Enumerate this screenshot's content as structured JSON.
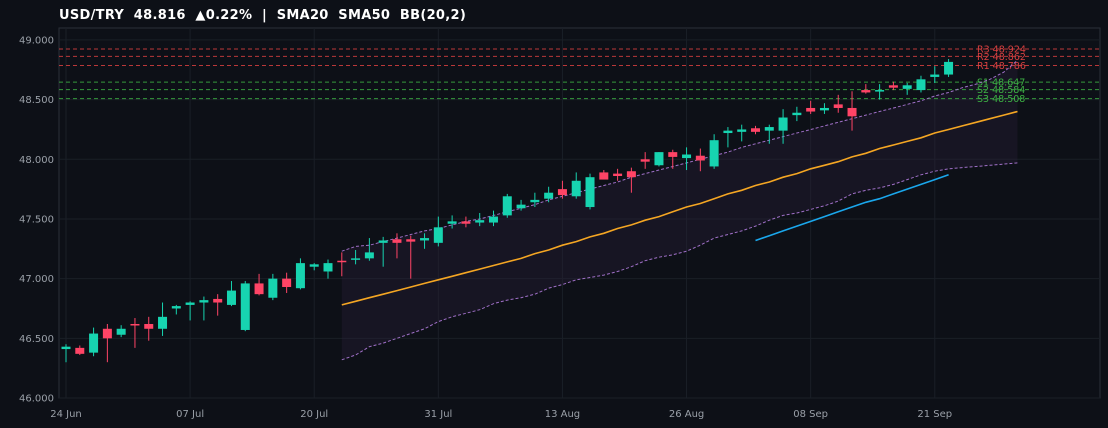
{
  "header": {
    "pair": "USD/TRY",
    "price": "48.816",
    "change": "▲0.22%",
    "separator": "|",
    "indicators": "SMA20  SMA50  BB(20,2)"
  },
  "chart_data": {
    "type": "candlestick",
    "title": "USD/TRY  48.816  ▲0.22%  |  SMA20  SMA50  BB(20,2)",
    "ylim": [
      46.0,
      49.1
    ],
    "yticks": [
      46.0,
      46.5,
      47.0,
      47.5,
      48.0,
      48.5,
      49.0
    ],
    "ytick_labels": [
      "46.000",
      "46.500",
      "47.000",
      "47.500",
      "48.000",
      "48.500",
      "49.000"
    ],
    "xtick_labels": [
      {
        "label": "24 Jun",
        "index": 0
      },
      {
        "label": "07 Jul",
        "index": 9
      },
      {
        "label": "20 Jul",
        "index": 18
      },
      {
        "label": "31 Jul",
        "index": 27
      },
      {
        "label": "13 Aug",
        "index": 36
      },
      {
        "label": "26 Aug",
        "index": 45
      },
      {
        "label": "08 Sep",
        "index": 54
      },
      {
        "label": "21 Sep",
        "index": 63
      }
    ],
    "n_slots": 75,
    "colors": {
      "up": "#17d4b0",
      "down": "#ff4466",
      "sma20": "#f5a623",
      "sma50": "#1aa7ec",
      "bb": "#a070c8",
      "resistance": "#d94040",
      "support": "#3cb043",
      "grid": "#1a1f27",
      "axis": "#2a2f38"
    },
    "ohlc": [
      [
        46.41,
        46.45,
        46.3,
        46.43
      ],
      [
        46.42,
        46.44,
        46.36,
        46.37
      ],
      [
        46.38,
        46.59,
        46.35,
        46.54
      ],
      [
        46.58,
        46.62,
        46.3,
        46.5
      ],
      [
        46.53,
        46.61,
        46.51,
        46.58
      ],
      [
        46.62,
        46.67,
        46.42,
        46.61
      ],
      [
        46.62,
        46.68,
        46.48,
        46.58
      ],
      [
        46.58,
        46.8,
        46.52,
        46.68
      ],
      [
        46.75,
        46.78,
        46.7,
        46.77
      ],
      [
        46.78,
        46.81,
        46.65,
        46.8
      ],
      [
        46.8,
        46.85,
        46.65,
        46.82
      ],
      [
        46.83,
        46.87,
        46.69,
        46.8
      ],
      [
        46.78,
        46.98,
        46.77,
        46.9
      ],
      [
        46.57,
        46.98,
        46.56,
        46.96
      ],
      [
        46.96,
        47.04,
        46.86,
        46.87
      ],
      [
        46.84,
        47.04,
        46.82,
        47.0
      ],
      [
        47.0,
        47.05,
        46.88,
        46.93
      ],
      [
        46.92,
        47.17,
        46.91,
        47.13
      ],
      [
        47.1,
        47.13,
        47.07,
        47.12
      ],
      [
        47.06,
        47.16,
        47.0,
        47.13
      ],
      [
        47.15,
        47.22,
        47.02,
        47.14
      ],
      [
        47.16,
        47.24,
        47.12,
        47.17
      ],
      [
        47.17,
        47.34,
        47.15,
        47.22
      ],
      [
        47.3,
        47.35,
        47.1,
        47.32
      ],
      [
        47.33,
        47.38,
        47.17,
        47.3
      ],
      [
        47.33,
        47.36,
        47.0,
        47.31
      ],
      [
        47.32,
        47.38,
        47.25,
        47.34
      ],
      [
        47.3,
        47.52,
        47.27,
        47.43
      ],
      [
        47.46,
        47.53,
        47.42,
        47.48
      ],
      [
        47.48,
        47.52,
        47.43,
        47.46
      ],
      [
        47.47,
        47.55,
        47.44,
        47.49
      ],
      [
        47.47,
        47.57,
        47.44,
        47.52
      ],
      [
        47.53,
        47.71,
        47.51,
        47.69
      ],
      [
        47.59,
        47.66,
        47.57,
        47.62
      ],
      [
        47.64,
        47.72,
        47.6,
        47.66
      ],
      [
        47.67,
        47.77,
        47.64,
        47.72
      ],
      [
        47.75,
        47.82,
        47.67,
        47.7
      ],
      [
        47.69,
        47.89,
        47.67,
        47.82
      ],
      [
        47.6,
        47.88,
        47.58,
        47.85
      ],
      [
        47.89,
        47.91,
        47.84,
        47.83
      ],
      [
        47.88,
        47.92,
        47.82,
        47.86
      ],
      [
        47.9,
        47.93,
        47.72,
        47.85
      ],
      [
        48.0,
        48.06,
        47.92,
        47.98
      ],
      [
        47.95,
        48.06,
        47.94,
        48.06
      ],
      [
        48.06,
        48.08,
        47.92,
        48.02
      ],
      [
        48.01,
        48.1,
        47.91,
        48.04
      ],
      [
        48.03,
        48.09,
        47.9,
        47.99
      ],
      [
        47.94,
        48.21,
        47.92,
        48.16
      ],
      [
        48.22,
        48.27,
        48.1,
        48.24
      ],
      [
        48.23,
        48.29,
        48.15,
        48.25
      ],
      [
        48.26,
        48.28,
        48.21,
        48.23
      ],
      [
        48.24,
        48.29,
        48.13,
        48.27
      ],
      [
        48.24,
        48.42,
        48.13,
        48.35
      ],
      [
        48.37,
        48.44,
        48.32,
        48.39
      ],
      [
        48.43,
        48.49,
        48.38,
        48.4
      ],
      [
        48.41,
        48.47,
        48.38,
        48.43
      ],
      [
        48.46,
        48.54,
        48.39,
        48.43
      ],
      [
        48.43,
        48.57,
        48.24,
        48.36
      ],
      [
        48.58,
        48.63,
        48.55,
        48.56
      ],
      [
        48.57,
        48.63,
        48.5,
        48.58
      ],
      [
        48.62,
        48.65,
        48.58,
        48.6
      ],
      [
        48.59,
        48.64,
        48.54,
        48.62
      ],
      [
        48.58,
        48.7,
        48.56,
        48.67
      ],
      [
        48.69,
        48.78,
        48.64,
        48.71
      ],
      [
        48.71,
        48.84,
        48.69,
        48.816
      ]
    ],
    "series": [
      {
        "name": "SMA20",
        "start_index": 20,
        "values": [
          46.78,
          46.81,
          46.84,
          46.87,
          46.9,
          46.93,
          46.96,
          46.99,
          47.02,
          47.05,
          47.08,
          47.11,
          47.14,
          47.17,
          47.21,
          47.24,
          47.28,
          47.31,
          47.35,
          47.38,
          47.42,
          47.45,
          47.49,
          47.52,
          47.56,
          47.6,
          47.63,
          47.67,
          47.71,
          47.74,
          47.78,
          47.81,
          47.85,
          47.88,
          47.92,
          47.95,
          47.98,
          48.02,
          48.05,
          48.09,
          48.12,
          48.15,
          48.18,
          48.22,
          48.25,
          48.28,
          48.31,
          48.34,
          48.37,
          48.4
        ]
      },
      {
        "name": "SMA50",
        "start_index": 50,
        "values": [
          47.32,
          47.36,
          47.4,
          47.44,
          47.48,
          47.52,
          47.56,
          47.6,
          47.64,
          47.67,
          47.71,
          47.75,
          47.79,
          47.83,
          47.87
        ]
      },
      {
        "name": "BB upper",
        "start_index": 20,
        "values": [
          47.23,
          47.27,
          47.28,
          47.31,
          47.34,
          47.37,
          47.4,
          47.42,
          47.45,
          47.48,
          47.5,
          47.53,
          47.56,
          47.59,
          47.62,
          47.66,
          47.69,
          47.72,
          47.75,
          47.78,
          47.81,
          47.85,
          47.88,
          47.91,
          47.94,
          47.97,
          48.0,
          48.03,
          48.06,
          48.1,
          48.13,
          48.16,
          48.19,
          48.22,
          48.25,
          48.28,
          48.31,
          48.34,
          48.37,
          48.4,
          48.43,
          48.46,
          48.49,
          48.53,
          48.56,
          48.6,
          48.63,
          48.67,
          48.73,
          48.83
        ]
      },
      {
        "name": "BB lower",
        "start_index": 20,
        "values": [
          46.32,
          46.36,
          46.43,
          46.46,
          46.5,
          46.54,
          46.58,
          46.64,
          46.68,
          46.71,
          46.74,
          46.79,
          46.82,
          46.84,
          46.87,
          46.92,
          46.95,
          46.99,
          47.01,
          47.03,
          47.06,
          47.1,
          47.15,
          47.18,
          47.2,
          47.23,
          47.28,
          47.34,
          47.37,
          47.4,
          47.44,
          47.49,
          47.53,
          47.55,
          47.58,
          47.61,
          47.65,
          47.71,
          47.74,
          47.76,
          47.79,
          47.83,
          47.87,
          47.9,
          47.92,
          47.93,
          47.94,
          47.95,
          47.96,
          47.97
        ]
      }
    ],
    "levels": [
      {
        "label": "R3 48.924",
        "value": 48.924,
        "kind": "resistance"
      },
      {
        "label": "R2 48.862",
        "value": 48.862,
        "kind": "resistance"
      },
      {
        "label": "R1 48.786",
        "value": 48.786,
        "kind": "resistance"
      },
      {
        "label": "S1 48.647",
        "value": 48.647,
        "kind": "support"
      },
      {
        "label": "S2 48.584",
        "value": 48.584,
        "kind": "support"
      },
      {
        "label": "S3 48.508",
        "value": 48.508,
        "kind": "support"
      }
    ]
  }
}
